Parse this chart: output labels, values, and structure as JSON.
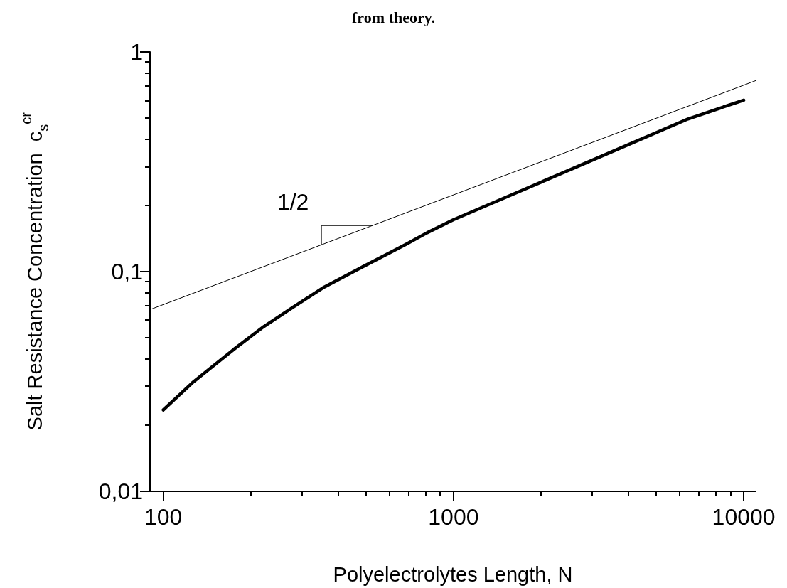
{
  "chart_data": {
    "type": "line",
    "title": "from theory.",
    "xlabel": "Polyelectrolytes Length, N",
    "ylabel": "Salt Resistance Concentration  c$_{s}$$^{cr}$",
    "log": "xy",
    "grid": false,
    "marker": "none",
    "line_style": "solid",
    "xlim": [
      90,
      11000
    ],
    "ylim": [
      0.01,
      1
    ],
    "xticks": [
      100,
      {
        "value": 200,
        "label": null
      },
      {
        "value": 300,
        "label": null
      },
      {
        "value": 400,
        "label": null
      },
      {
        "value": 500,
        "label": null
      },
      {
        "value": 600,
        "label": null
      },
      {
        "value": 700,
        "label": null
      },
      {
        "value": 800,
        "label": null
      },
      {
        "value": 900,
        "label": null
      },
      1000,
      {
        "value": 2000,
        "label": null
      },
      {
        "value": 3000,
        "label": null
      },
      {
        "value": 4000,
        "label": null
      },
      {
        "value": 5000,
        "label": null
      },
      {
        "value": 6000,
        "label": null
      },
      {
        "value": 7000,
        "label": null
      },
      {
        "value": 8000,
        "label": null
      },
      {
        "value": 9000,
        "label": null
      },
      10000
    ],
    "yticks": [
      {
        "value": 0.01,
        "label": "0,01"
      },
      {
        "value": 0.02,
        "label": null
      },
      {
        "value": 0.03,
        "label": null
      },
      {
        "value": 0.04,
        "label": null
      },
      {
        "value": 0.05,
        "label": null
      },
      {
        "value": 0.06,
        "label": null
      },
      {
        "value": 0.07,
        "label": null
      },
      {
        "value": 0.08,
        "label": null
      },
      {
        "value": 0.09,
        "label": null
      },
      {
        "value": 0.1,
        "label": "0,1"
      },
      {
        "value": 0.2,
        "label": null
      },
      {
        "value": 0.3,
        "label": null
      },
      {
        "value": 0.4,
        "label": null
      },
      {
        "value": 0.5,
        "label": null
      },
      {
        "value": 0.6,
        "label": null
      },
      {
        "value": 0.7,
        "label": null
      },
      {
        "value": 0.8,
        "label": null
      },
      {
        "value": 0.9,
        "label": null
      },
      1
    ],
    "series": [
      {
        "color": "#000000",
        "x": [
          100,
          126,
          174,
          222,
          278,
          355,
          470,
          685,
          811,
          1000,
          1722,
          3656,
          6427,
          10000
        ],
        "values": [
          0.0234,
          0.0311,
          0.0439,
          0.0561,
          0.0683,
          0.0842,
          0.1025,
          0.1327,
          0.15,
          0.172,
          0.234,
          0.359,
          0.495,
          0.603
        ]
      },
      {
        "color": "#000000",
        "x": [
          90,
          11000
        ],
        "values": [
          0.067,
          0.74
        ]
      }
    ],
    "annotations": [
      "1/2"
    ]
  }
}
